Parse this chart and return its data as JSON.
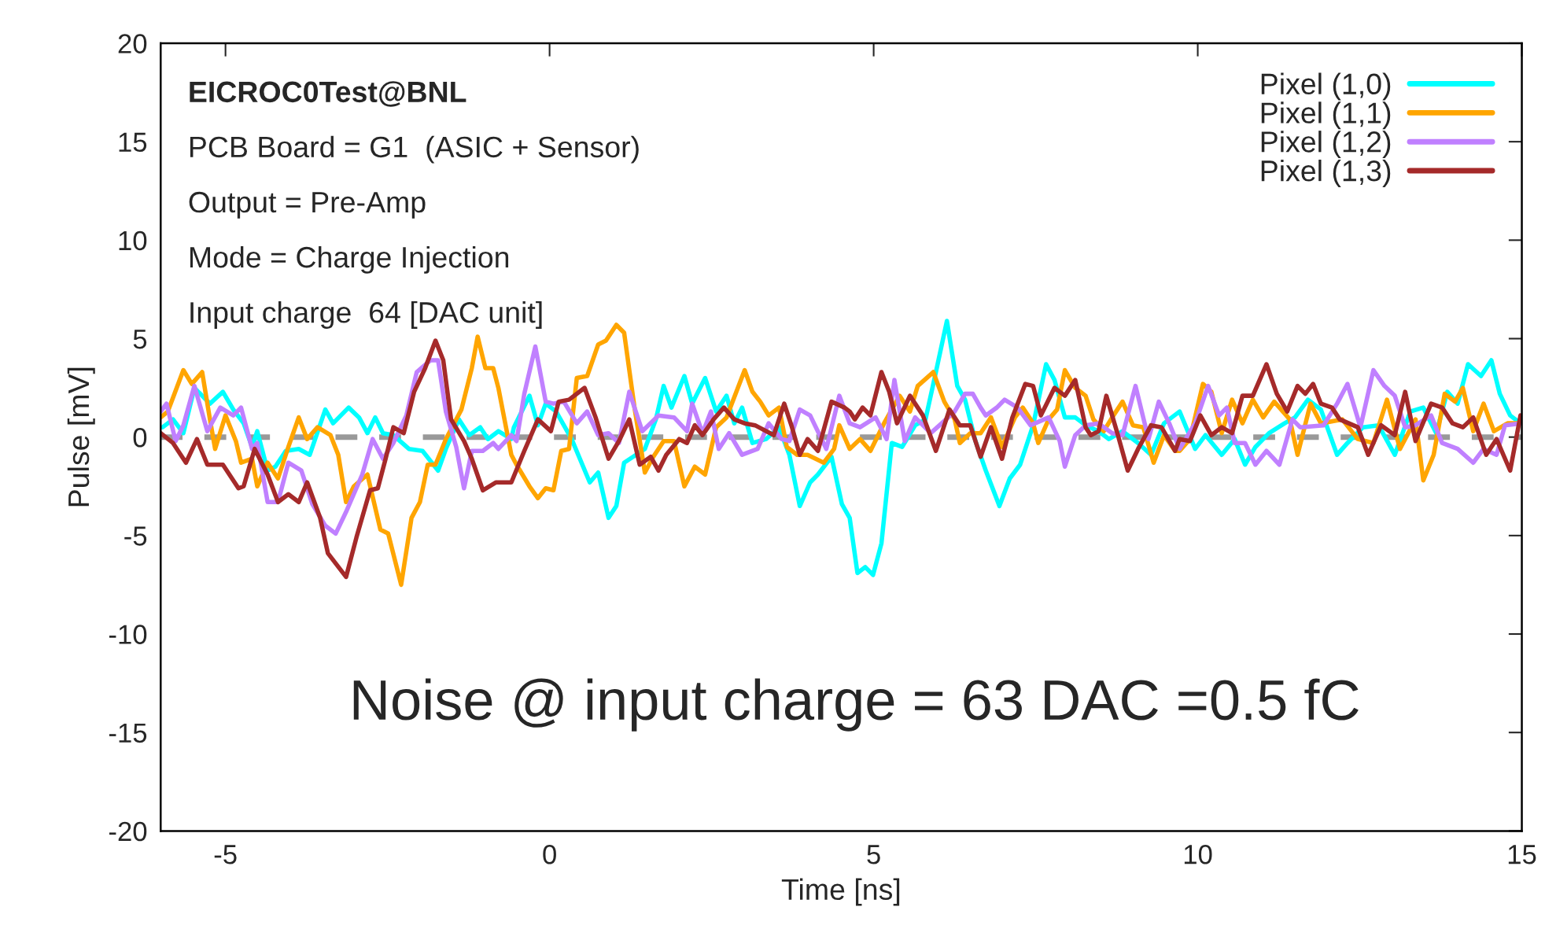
{
  "chart_data": {
    "type": "line",
    "xlabel": "Time [ns]",
    "ylabel": "Pulse [mV]",
    "xlim": [
      -6,
      15
    ],
    "xticks": [
      -5,
      0,
      5,
      10,
      15
    ],
    "ylim": [
      -20,
      20
    ],
    "yticks": [
      -20,
      -15,
      -10,
      -5,
      0,
      5,
      10,
      15,
      20
    ],
    "grid": false,
    "legend": "top right",
    "marker": "none",
    "line_style": "solid",
    "annotations": [
      "EICROC0Test@BNL",
      "PCB Board = G1  (ASIC + Sensor)",
      "Output = Pre-Amp",
      "Mode = Charge Injection",
      "Input charge  64 [DAC unit]",
      "Noise @ input charge = 63 DAC =0.5 fC"
    ],
    "ref_lines": [
      {
        "axis": "y",
        "value": 0,
        "color": "#999999",
        "line_style": "dashed"
      }
    ],
    "series": [
      {
        "name": "Pixel (1,0)",
        "color": "#00ffff",
        "x": [
          -5.97,
          -5.81,
          -5.65,
          -5.48,
          -5.24,
          -5.04,
          -4.88,
          -4.72,
          -4.59,
          -4.51,
          -4.35,
          -4.23,
          -4.07,
          -3.87,
          -3.7,
          -3.46,
          -3.34,
          -3.1,
          -2.94,
          -2.81,
          -2.69,
          -2.57,
          -2.41,
          -2.17,
          -1.96,
          -1.72,
          -1.6,
          -1.4,
          -1.24,
          -1.07,
          -0.95,
          -0.79,
          -0.59,
          -0.55,
          -0.31,
          -0.18,
          -0.06,
          0.1,
          0.34,
          0.62,
          0.75,
          0.91,
          1.03,
          1.15,
          1.47,
          1.64,
          1.76,
          1.88,
          2.08,
          2.2,
          2.4,
          2.57,
          2.73,
          2.85,
          2.97,
          3.13,
          3.34,
          3.54,
          3.7,
          3.86,
          4.02,
          4.14,
          4.35,
          4.51,
          4.63,
          4.75,
          4.87,
          4.99,
          5.12,
          5.28,
          5.44,
          5.64,
          5.8,
          5.96,
          6.13,
          6.29,
          6.41,
          6.57,
          6.73,
          6.94,
          7.1,
          7.26,
          7.46,
          7.66,
          7.79,
          7.95,
          8.11,
          8.27,
          8.47,
          8.63,
          8.84,
          9.08,
          9.28,
          9.48,
          9.72,
          9.96,
          10.12,
          10.37,
          10.57,
          10.73,
          10.89,
          11.1,
          11.34,
          11.5,
          11.7,
          11.9,
          12.15,
          12.31,
          12.55,
          12.79,
          13.04,
          13.28,
          13.48,
          13.68,
          13.85,
          14.01,
          14.17,
          14.37,
          14.53,
          14.66,
          14.82,
          14.98
        ],
        "values": [
          0.5,
          0.9,
          0.2,
          2.5,
          1.7,
          2.3,
          1.4,
          0.7,
          -0.5,
          0.3,
          -1.7,
          -1.5,
          -0.7,
          -0.6,
          -0.9,
          1.4,
          0.7,
          1.5,
          1.0,
          0.2,
          1.0,
          0.2,
          0.1,
          -0.6,
          -0.7,
          -1.7,
          -0.6,
          0.9,
          0.1,
          0.5,
          -0.1,
          0.3,
          -0.1,
          0.5,
          2.1,
          0.6,
          1.7,
          1.3,
          -0.1,
          -2.3,
          -1.8,
          -4.1,
          -3.5,
          -1.3,
          -0.6,
          0.9,
          2.6,
          1.5,
          3.1,
          1.7,
          3.0,
          1.3,
          2.1,
          0.7,
          1.5,
          -0.3,
          -0.1,
          0.5,
          -0.9,
          -3.5,
          -2.3,
          -1.9,
          -1.0,
          -3.4,
          -4.1,
          -6.9,
          -6.6,
          -7.0,
          -5.4,
          -0.3,
          -0.5,
          0.6,
          0.9,
          3.3,
          5.9,
          2.6,
          1.9,
          -0.2,
          -1.7,
          -3.5,
          -2.1,
          -1.4,
          0.6,
          3.7,
          2.9,
          1.0,
          1.0,
          0.6,
          0.3,
          -0.1,
          0.3,
          -0.3,
          -0.9,
          0.7,
          1.3,
          -0.6,
          0.1,
          -0.9,
          -0.1,
          -1.4,
          -0.5,
          0.2,
          0.7,
          1.0,
          1.9,
          1.4,
          -0.9,
          -0.3,
          0.5,
          0.6,
          -0.9,
          1.3,
          1.5,
          0.2,
          2.3,
          1.7,
          3.7,
          3.1,
          3.9,
          2.2,
          1.1,
          0.7
        ]
      },
      {
        "name": "Pixel (1,1)",
        "color": "#ffa500",
        "x": [
          -6.0,
          -5.89,
          -5.65,
          -5.52,
          -5.36,
          -5.24,
          -5.16,
          -5.0,
          -4.84,
          -4.76,
          -4.59,
          -4.51,
          -4.35,
          -4.19,
          -4.03,
          -3.87,
          -3.74,
          -3.58,
          -3.38,
          -3.26,
          -3.14,
          -3.02,
          -2.81,
          -2.61,
          -2.49,
          -2.29,
          -2.13,
          -2.0,
          -1.88,
          -1.76,
          -1.6,
          -1.36,
          -1.2,
          -1.11,
          -0.99,
          -0.87,
          -0.79,
          -0.59,
          -0.51,
          -0.31,
          -0.18,
          -0.06,
          0.06,
          0.18,
          0.3,
          0.42,
          0.58,
          0.75,
          0.87,
          1.03,
          1.15,
          1.31,
          1.47,
          1.6,
          1.76,
          1.92,
          2.08,
          2.24,
          2.4,
          2.57,
          2.73,
          3.01,
          3.13,
          3.25,
          3.38,
          3.54,
          3.66,
          3.82,
          3.98,
          4.23,
          4.39,
          4.47,
          4.63,
          4.79,
          4.95,
          5.16,
          5.4,
          5.56,
          5.68,
          5.92,
          6.09,
          6.25,
          6.33,
          6.49,
          6.65,
          6.81,
          6.98,
          7.18,
          7.3,
          7.46,
          7.54,
          7.7,
          7.83,
          7.95,
          8.11,
          8.27,
          8.39,
          8.55,
          8.68,
          8.84,
          9.0,
          9.16,
          9.32,
          9.48,
          9.65,
          9.72,
          9.88,
          10.08,
          10.21,
          10.37,
          10.53,
          10.69,
          10.85,
          11.01,
          11.18,
          11.42,
          11.54,
          11.74,
          11.9,
          12.23,
          12.47,
          12.71,
          12.92,
          13.12,
          13.36,
          13.48,
          13.64,
          13.81,
          13.97,
          14.09,
          14.25,
          14.41,
          14.57,
          14.78,
          14.98
        ],
        "values": [
          1.0,
          1.3,
          3.4,
          2.7,
          3.3,
          0.9,
          -0.6,
          1.1,
          -0.2,
          -1.3,
          -1.1,
          -2.5,
          -1.3,
          -2.1,
          -0.5,
          1.0,
          -0.1,
          0.5,
          0.1,
          -0.9,
          -3.3,
          -2.5,
          -1.9,
          -4.7,
          -4.9,
          -7.5,
          -4.1,
          -3.3,
          -1.4,
          -1.4,
          -0.1,
          1.4,
          3.5,
          5.1,
          3.5,
          3.5,
          2.5,
          -0.9,
          -1.4,
          -2.5,
          -3.1,
          -2.6,
          -2.7,
          -0.7,
          -0.6,
          3.0,
          3.1,
          4.7,
          4.9,
          5.7,
          5.3,
          1.5,
          -1.8,
          -1.0,
          -0.2,
          -0.2,
          -2.5,
          -1.5,
          -1.9,
          0.5,
          1.0,
          3.4,
          2.3,
          1.8,
          1.1,
          1.5,
          -0.5,
          -0.9,
          -0.9,
          -1.3,
          -0.6,
          0.6,
          -0.6,
          -0.1,
          -0.7,
          0.7,
          2.1,
          1.3,
          2.6,
          3.3,
          1.8,
          0.9,
          -0.3,
          0.2,
          0.2,
          1.0,
          -0.5,
          1.0,
          1.5,
          0.7,
          -0.3,
          0.9,
          1.4,
          3.4,
          2.5,
          2.1,
          0.9,
          0.3,
          1.0,
          1.8,
          0.6,
          0.5,
          -1.3,
          0.1,
          -0.7,
          -0.7,
          -0.1,
          2.7,
          2.3,
          0.2,
          1.9,
          0.7,
          1.9,
          1.0,
          1.8,
          0.9,
          -0.9,
          1.7,
          0.7,
          0.9,
          -0.1,
          -0.3,
          1.9,
          -0.6,
          0.9,
          -2.2,
          -0.9,
          2.2,
          1.8,
          2.5,
          0.3,
          1.7,
          0.3,
          0.7,
          0.7
        ]
      },
      {
        "name": "Pixel (1,2)",
        "color": "#c080ff",
        "x": [
          -6.0,
          -5.91,
          -5.77,
          -5.65,
          -5.48,
          -5.28,
          -5.08,
          -4.88,
          -4.76,
          -4.59,
          -4.51,
          -4.35,
          -4.19,
          -4.03,
          -3.83,
          -3.66,
          -3.46,
          -3.3,
          -3.14,
          -2.89,
          -2.73,
          -2.57,
          -2.41,
          -2.21,
          -2.05,
          -1.84,
          -1.72,
          -1.6,
          -1.44,
          -1.32,
          -1.2,
          -1.03,
          -0.87,
          -0.79,
          -0.59,
          -0.51,
          -0.39,
          -0.22,
          -0.06,
          0.06,
          0.22,
          0.42,
          0.58,
          0.75,
          0.91,
          1.07,
          1.23,
          1.43,
          1.68,
          1.92,
          2.12,
          2.2,
          2.36,
          2.49,
          2.61,
          2.77,
          2.97,
          3.21,
          3.38,
          3.58,
          3.7,
          3.86,
          4.02,
          4.27,
          4.47,
          4.63,
          4.79,
          5.03,
          5.2,
          5.32,
          5.48,
          5.64,
          5.88,
          6.05,
          6.25,
          6.41,
          6.53,
          6.65,
          6.73,
          6.9,
          7.02,
          7.22,
          7.42,
          7.7,
          7.87,
          7.95,
          8.11,
          8.27,
          8.47,
          8.68,
          8.84,
          9.04,
          9.24,
          9.4,
          9.56,
          9.72,
          9.96,
          10.16,
          10.33,
          10.45,
          10.57,
          10.73,
          10.89,
          11.06,
          11.26,
          11.46,
          11.58,
          11.94,
          12.15,
          12.31,
          12.51,
          12.71,
          12.88,
          13.04,
          13.2,
          13.36,
          13.6,
          13.77,
          14.01,
          14.25,
          14.41,
          14.61,
          14.74,
          14.98
        ],
        "values": [
          1.3,
          1.7,
          -0.2,
          0.6,
          2.6,
          0.3,
          1.5,
          1.1,
          1.5,
          -0.6,
          -0.3,
          -3.3,
          -3.3,
          -1.3,
          -1.7,
          -3.4,
          -4.5,
          -4.9,
          -3.8,
          -1.9,
          -0.1,
          -1.1,
          -0.3,
          1.1,
          3.3,
          3.9,
          3.9,
          1.3,
          -0.5,
          -2.6,
          -0.7,
          -0.7,
          -0.3,
          -0.6,
          0.1,
          -0.2,
          2.2,
          4.6,
          1.8,
          1.7,
          1.8,
          0.7,
          1.3,
          0.1,
          0.2,
          -0.3,
          2.3,
          0.3,
          1.1,
          1.0,
          0.3,
          1.7,
          0.2,
          1.3,
          -0.6,
          0.2,
          -0.9,
          -0.6,
          0.7,
          -0.1,
          -0.2,
          1.4,
          1.1,
          -0.6,
          2.1,
          0.7,
          0.5,
          1.0,
          -0.1,
          2.9,
          -0.2,
          1.0,
          0.2,
          0.7,
          1.3,
          2.2,
          2.2,
          1.5,
          1.1,
          1.5,
          1.9,
          1.5,
          0.6,
          1.0,
          -0.2,
          -1.5,
          0.1,
          0.6,
          0.7,
          0.2,
          0.1,
          2.6,
          -0.1,
          1.8,
          0.7,
          -0.6,
          0.7,
          2.6,
          1.1,
          1.5,
          -0.3,
          -0.3,
          -1.4,
          -0.7,
          -1.4,
          0.9,
          0.5,
          0.6,
          1.7,
          2.7,
          0.5,
          3.4,
          2.6,
          2.1,
          0.5,
          0.6,
          1.1,
          -0.3,
          -0.6,
          -1.3,
          -0.6,
          -0.9,
          0.6,
          0.7
        ]
      },
      {
        "name": "Pixel (1,3)",
        "color": "#a52a2a",
        "x": [
          -6.0,
          -5.81,
          -5.61,
          -5.44,
          -5.28,
          -5.04,
          -4.8,
          -4.72,
          -4.55,
          -4.35,
          -4.19,
          -4.03,
          -3.87,
          -3.74,
          -3.54,
          -3.42,
          -3.14,
          -2.98,
          -2.77,
          -2.65,
          -2.53,
          -2.41,
          -2.25,
          -2.09,
          -1.92,
          -1.76,
          -1.64,
          -1.52,
          -1.32,
          -1.2,
          -1.03,
          -0.83,
          -0.59,
          -0.39,
          -0.18,
          0.02,
          0.14,
          0.3,
          0.54,
          0.71,
          0.91,
          1.07,
          1.23,
          1.39,
          1.56,
          1.68,
          1.8,
          2.0,
          2.12,
          2.24,
          2.36,
          2.53,
          2.69,
          2.85,
          3.01,
          3.17,
          3.46,
          3.62,
          3.74,
          3.86,
          3.98,
          4.14,
          4.35,
          4.55,
          4.63,
          4.71,
          4.83,
          4.95,
          5.12,
          5.24,
          5.36,
          5.56,
          5.76,
          5.96,
          6.17,
          6.33,
          6.49,
          6.65,
          6.81,
          6.98,
          7.14,
          7.34,
          7.46,
          7.58,
          7.79,
          7.95,
          8.11,
          8.27,
          8.35,
          8.47,
          8.59,
          8.76,
          8.92,
          9.08,
          9.28,
          9.44,
          9.65,
          9.72,
          9.88,
          10.04,
          10.21,
          10.37,
          10.53,
          10.69,
          10.85,
          11.06,
          11.22,
          11.38,
          11.54,
          11.66,
          11.78,
          11.9,
          12.07,
          12.19,
          12.47,
          12.63,
          12.83,
          13.04,
          13.2,
          13.36,
          13.6,
          13.77,
          13.93,
          14.09,
          14.25,
          14.45,
          14.61,
          14.82,
          14.98
        ],
        "values": [
          0.2,
          -0.3,
          -1.3,
          -0.1,
          -1.4,
          -1.4,
          -2.6,
          -2.5,
          -0.6,
          -1.9,
          -3.3,
          -2.9,
          -3.3,
          -2.3,
          -4.1,
          -5.9,
          -7.1,
          -5.1,
          -2.7,
          -2.6,
          -1.1,
          0.5,
          0.2,
          2.3,
          3.5,
          4.9,
          3.9,
          0.9,
          -0.2,
          -1.1,
          -2.7,
          -2.3,
          -2.3,
          -0.7,
          0.9,
          0.3,
          1.8,
          1.9,
          2.5,
          1.0,
          -1.1,
          -0.2,
          0.9,
          -1.4,
          -1.0,
          -1.7,
          -0.9,
          -0.1,
          -0.3,
          0.6,
          0.1,
          0.9,
          1.5,
          0.9,
          0.7,
          0.6,
          0.1,
          1.7,
          0.5,
          -0.9,
          -0.1,
          -0.7,
          1.8,
          1.5,
          1.3,
          0.9,
          1.5,
          1.1,
          3.3,
          2.3,
          0.7,
          2.1,
          1.1,
          -0.7,
          1.4,
          0.6,
          0.6,
          -1.0,
          0.5,
          -1.1,
          1.0,
          2.7,
          2.6,
          1.1,
          2.5,
          2.1,
          2.9,
          0.5,
          0.1,
          0.3,
          2.1,
          0.2,
          -1.7,
          -0.6,
          0.6,
          0.5,
          -0.7,
          -0.1,
          -0.2,
          1.1,
          0.1,
          0.5,
          0.2,
          2.1,
          2.1,
          3.7,
          2.2,
          1.3,
          2.6,
          2.2,
          2.7,
          1.7,
          1.5,
          0.9,
          0.5,
          -0.9,
          0.6,
          0.1,
          2.3,
          -0.2,
          1.7,
          1.5,
          0.7,
          0.5,
          1.0,
          -0.9,
          -0.1,
          -1.7,
          1.1
        ]
      }
    ]
  }
}
